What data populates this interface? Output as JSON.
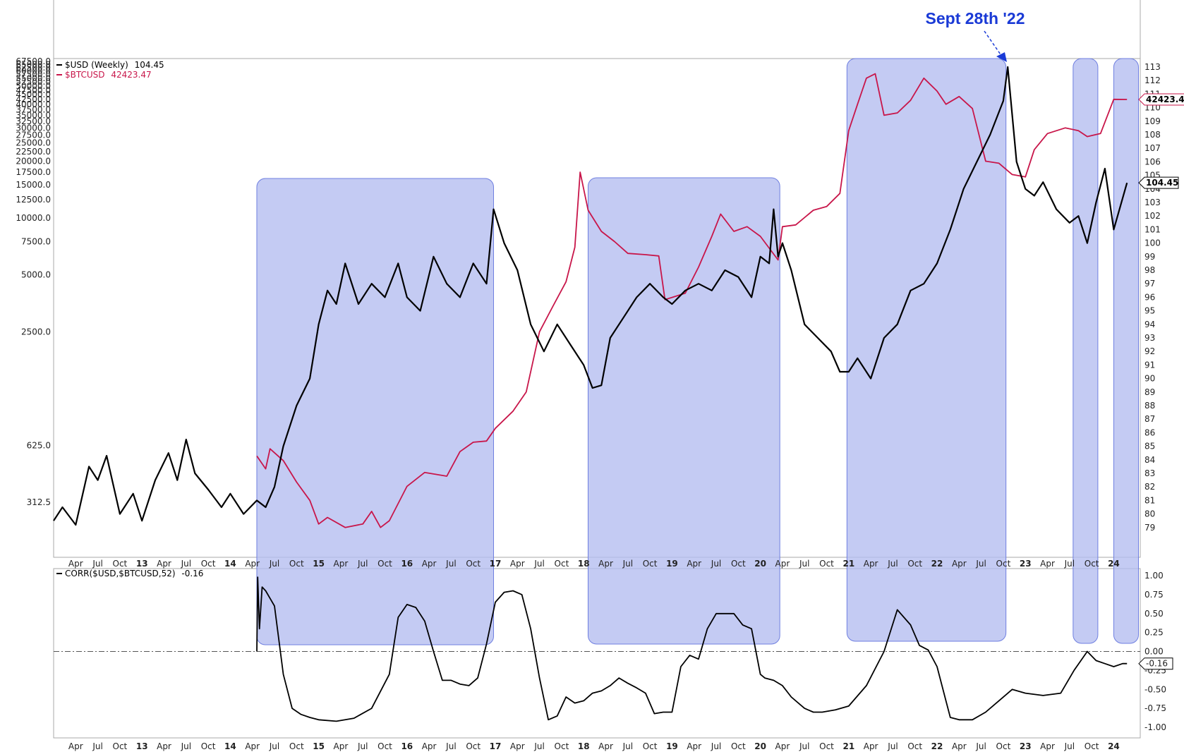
{
  "annotation": {
    "text": "Sept 28th '22",
    "color": "#1a3ad6"
  },
  "colors": {
    "usd": "#000000",
    "btc": "#c8164a",
    "highlight": "#b4bcf0",
    "highlight_border": "#6f7fe0",
    "axis": "#aaaaaa"
  },
  "chart_data": [
    {
      "type": "line",
      "title": "",
      "legend": [
        {
          "name": "$USD (Weekly)",
          "value": "104.45",
          "color": "#000000"
        },
        {
          "name": "$BTCUSD",
          "value": "42423.47",
          "color": "#c8164a"
        }
      ],
      "last_value_tags": {
        "usd": "104.45",
        "btc": "42423.47"
      },
      "x_tick_labels": [
        "Apr",
        "Jul",
        "Oct",
        "13",
        "Apr",
        "Jul",
        "Oct",
        "14",
        "Apr",
        "Jul",
        "Oct",
        "15",
        "Apr",
        "Jul",
        "Oct",
        "16",
        "Apr",
        "Jul",
        "Oct",
        "17",
        "Apr",
        "Jul",
        "Oct",
        "18",
        "Apr",
        "Jul",
        "Oct",
        "19",
        "Apr",
        "Jul",
        "Oct",
        "20",
        "Apr",
        "Jul",
        "Oct",
        "21",
        "Apr",
        "Jul",
        "Oct",
        "22",
        "Apr",
        "Jul",
        "Oct",
        "23",
        "Apr",
        "Jul",
        "Oct",
        "24"
      ],
      "x_range": [
        2012.0,
        2024.3
      ],
      "left_axis": {
        "scale": "log",
        "range": [
          200,
          67500
        ],
        "tick_labels": [
          "67500.0",
          "65000.0",
          "62500.0",
          "60000.0",
          "57500.0",
          "55000.0",
          "52500.0",
          "50000.0",
          "47500.0",
          "45000.0",
          "42500.0",
          "40000.0",
          "37500.0",
          "35000.0",
          "32500.0",
          "30000.0",
          "27500.0",
          "25000.0",
          "22500.0",
          "20000.0",
          "17500.0",
          "15000.0",
          "12500.0",
          "10000.0",
          "7500.0",
          "5000.0",
          "2500.0",
          "625.0",
          "312.5"
        ]
      },
      "right_axis": {
        "scale": "linear",
        "range": [
          78,
          113
        ],
        "tick_labels": [
          "113",
          "112",
          "111",
          "110",
          "109",
          "108",
          "107",
          "106",
          "105",
          "104",
          "103",
          "102",
          "101",
          "100",
          "99",
          "98",
          "97",
          "96",
          "95",
          "94",
          "93",
          "92",
          "91",
          "90",
          "89",
          "88",
          "87",
          "86",
          "85",
          "84",
          "83",
          "82",
          "81",
          "80",
          "79"
        ]
      },
      "series": [
        {
          "name": "$USD (Weekly)",
          "axis": "right",
          "x": [
            2012.0,
            2012.1,
            2012.25,
            2012.4,
            2012.5,
            2012.6,
            2012.75,
            2012.9,
            2013.0,
            2013.15,
            2013.3,
            2013.4,
            2013.5,
            2013.6,
            2013.75,
            2013.9,
            2014.0,
            2014.15,
            2014.3,
            2014.4,
            2014.5,
            2014.6,
            2014.75,
            2014.9,
            2015.0,
            2015.1,
            2015.2,
            2015.3,
            2015.45,
            2015.6,
            2015.75,
            2015.9,
            2016.0,
            2016.15,
            2016.3,
            2016.45,
            2016.6,
            2016.75,
            2016.9,
            2016.98,
            2017.1,
            2017.25,
            2017.4,
            2017.55,
            2017.7,
            2017.85,
            2018.0,
            2018.1,
            2018.2,
            2018.3,
            2018.45,
            2018.6,
            2018.75,
            2018.9,
            2019.0,
            2019.15,
            2019.3,
            2019.45,
            2019.6,
            2019.75,
            2019.9,
            2020.0,
            2020.1,
            2020.15,
            2020.2,
            2020.25,
            2020.35,
            2020.5,
            2020.65,
            2020.8,
            2020.9,
            2021.0,
            2021.1,
            2021.25,
            2021.4,
            2021.55,
            2021.7,
            2021.85,
            2022.0,
            2022.15,
            2022.3,
            2022.45,
            2022.6,
            2022.75,
            2022.8,
            2022.9,
            2023.0,
            2023.1,
            2023.2,
            2023.35,
            2023.5,
            2023.6,
            2023.7,
            2023.8,
            2023.9,
            2024.0,
            2024.15
          ],
          "values": [
            79.5,
            80.5,
            79.2,
            83.5,
            82.5,
            84.3,
            80,
            81.5,
            79.5,
            82.5,
            84.5,
            82.5,
            85.5,
            83,
            81.8,
            80.5,
            81.5,
            80,
            81,
            80.5,
            82,
            85,
            88,
            90,
            94,
            96.5,
            95.5,
            98.5,
            95.5,
            97,
            96,
            98.5,
            96,
            95,
            99,
            97,
            96,
            98.5,
            97,
            102.5,
            100,
            98,
            94,
            92,
            94,
            92.5,
            91,
            89.3,
            89.5,
            93,
            94.5,
            96,
            97,
            96,
            95.5,
            96.5,
            97,
            96.5,
            98,
            97.5,
            96,
            99,
            98.5,
            102.5,
            99,
            100,
            98,
            94,
            93,
            92,
            90.5,
            90.5,
            91.5,
            90,
            93,
            94,
            96.5,
            97,
            98.5,
            101,
            104,
            106,
            108,
            110.5,
            113,
            106,
            104,
            103.5,
            104.5,
            102.5,
            101.5,
            102,
            100,
            103,
            105.5,
            101,
            104.45
          ]
        },
        {
          "name": "$BTCUSD",
          "axis": "left",
          "x": [
            2014.3,
            2014.4,
            2014.45,
            2014.6,
            2014.75,
            2014.9,
            2015.0,
            2015.1,
            2015.3,
            2015.5,
            2015.6,
            2015.7,
            2015.8,
            2016.0,
            2016.2,
            2016.45,
            2016.6,
            2016.75,
            2016.9,
            2017.0,
            2017.2,
            2017.35,
            2017.5,
            2017.65,
            2017.8,
            2017.9,
            2017.96,
            2018.05,
            2018.2,
            2018.35,
            2018.5,
            2018.7,
            2018.85,
            2018.92,
            2019.0,
            2019.15,
            2019.3,
            2019.45,
            2019.55,
            2019.7,
            2019.85,
            2020.0,
            2020.2,
            2020.25,
            2020.4,
            2020.6,
            2020.75,
            2020.9,
            2021.0,
            2021.1,
            2021.2,
            2021.3,
            2021.4,
            2021.55,
            2021.7,
            2021.85,
            2022.0,
            2022.1,
            2022.25,
            2022.4,
            2022.55,
            2022.7,
            2022.85,
            2023.0,
            2023.1,
            2023.25,
            2023.45,
            2023.6,
            2023.7,
            2023.85,
            2024.0,
            2024.15
          ],
          "values": [
            550,
            470,
            600,
            520,
            400,
            320,
            240,
            260,
            230,
            240,
            280,
            230,
            250,
            380,
            450,
            430,
            580,
            650,
            660,
            770,
            950,
            1200,
            2500,
            3400,
            4600,
            7000,
            17500,
            11000,
            8500,
            7500,
            6500,
            6400,
            6300,
            3700,
            3800,
            4000,
            5500,
            8000,
            10500,
            8500,
            9000,
            8000,
            6000,
            9000,
            9200,
            11000,
            11500,
            13500,
            29000,
            40000,
            55000,
            58000,
            35000,
            36000,
            42000,
            55000,
            47000,
            40000,
            44000,
            38000,
            20000,
            19500,
            17000,
            16500,
            23000,
            28000,
            30000,
            29000,
            27000,
            28000,
            42500,
            42423
          ]
        }
      ]
    },
    {
      "type": "line",
      "title": "",
      "legend": [
        {
          "name": "CORR($USD,$BTCUSD,52)",
          "value": "-0.16",
          "color": "#000000"
        }
      ],
      "last_value_tag": "-0.16",
      "x_tick_labels": [
        "Apr",
        "Jul",
        "Oct",
        "13",
        "Apr",
        "Jul",
        "Oct",
        "14",
        "Apr",
        "Jul",
        "Oct",
        "15",
        "Apr",
        "Jul",
        "Oct",
        "16",
        "Apr",
        "Jul",
        "Oct",
        "17",
        "Apr",
        "Jul",
        "Oct",
        "18",
        "Apr",
        "Jul",
        "Oct",
        "19",
        "Apr",
        "Jul",
        "Oct",
        "20",
        "Apr",
        "Jul",
        "Oct",
        "21",
        "Apr",
        "Jul",
        "Oct",
        "22",
        "Apr",
        "Jul",
        "Oct",
        "23",
        "Apr",
        "Jul",
        "Oct",
        "24"
      ],
      "y_range": [
        -1.0,
        1.0
      ],
      "y_tick_labels": [
        "1.00",
        "0.75",
        "0.50",
        "0.25",
        "0.00",
        "-0.25",
        "-0.50",
        "-0.75",
        "-1.00"
      ],
      "reference_line": 0,
      "series": [
        {
          "name": "CORR($USD,$BTCUSD,52)",
          "x": [
            2014.3,
            2014.31,
            2014.33,
            2014.36,
            2014.4,
            2014.5,
            2014.6,
            2014.7,
            2014.8,
            2014.9,
            2015.0,
            2015.2,
            2015.4,
            2015.6,
            2015.8,
            2015.9,
            2016.0,
            2016.1,
            2016.2,
            2016.3,
            2016.4,
            2016.5,
            2016.6,
            2016.7,
            2016.8,
            2016.9,
            2017.0,
            2017.1,
            2017.2,
            2017.3,
            2017.4,
            2017.5,
            2017.6,
            2017.7,
            2017.8,
            2017.9,
            2018.0,
            2018.1,
            2018.2,
            2018.3,
            2018.4,
            2018.5,
            2018.6,
            2018.7,
            2018.8,
            2018.9,
            2019.0,
            2019.1,
            2019.2,
            2019.3,
            2019.4,
            2019.5,
            2019.6,
            2019.7,
            2019.8,
            2019.9,
            2020.0,
            2020.05,
            2020.15,
            2020.25,
            2020.35,
            2020.45,
            2020.5,
            2020.6,
            2020.7,
            2020.85,
            2021.0,
            2021.2,
            2021.4,
            2021.55,
            2021.7,
            2021.8,
            2021.9,
            2022.0,
            2022.1,
            2022.15,
            2022.25,
            2022.4,
            2022.55,
            2022.7,
            2022.85,
            2023.0,
            2023.2,
            2023.4,
            2023.55,
            2023.7,
            2023.8,
            2023.9,
            2024.0,
            2024.1,
            2024.15
          ],
          "values": [
            0.0,
            0.98,
            0.3,
            0.85,
            0.8,
            0.6,
            -0.3,
            -0.75,
            -0.83,
            -0.87,
            -0.9,
            -0.92,
            -0.88,
            -0.75,
            -0.3,
            0.45,
            0.62,
            0.58,
            0.4,
            0.0,
            -0.38,
            -0.38,
            -0.43,
            -0.45,
            -0.35,
            0.1,
            0.65,
            0.78,
            0.8,
            0.75,
            0.3,
            -0.35,
            -0.9,
            -0.85,
            -0.6,
            -0.68,
            -0.65,
            -0.55,
            -0.52,
            -0.45,
            -0.35,
            -0.42,
            -0.48,
            -0.55,
            -0.82,
            -0.8,
            -0.8,
            -0.2,
            -0.05,
            -0.1,
            0.3,
            0.5,
            0.5,
            0.5,
            0.35,
            0.3,
            -0.3,
            -0.35,
            -0.38,
            -0.45,
            -0.6,
            -0.7,
            -0.75,
            -0.8,
            -0.8,
            -0.77,
            -0.72,
            -0.45,
            0.0,
            0.55,
            0.35,
            0.08,
            0.02,
            -0.2,
            -0.65,
            -0.87,
            -0.9,
            -0.9,
            -0.8,
            -0.65,
            -0.5,
            -0.55,
            -0.58,
            -0.55,
            -0.25,
            0.0,
            -0.12,
            -0.16,
            -0.2,
            -0.16,
            -0.16
          ]
        }
      ]
    }
  ],
  "highlight_periods": [
    {
      "name": "period-1",
      "x_start": 2014.3,
      "x_end": 2016.98
    },
    {
      "name": "period-2",
      "x_start": 2018.05,
      "x_end": 2020.22
    },
    {
      "name": "period-3",
      "x_start": 2020.98,
      "x_end": 2022.78
    },
    {
      "name": "period-4",
      "x_start": 2023.54,
      "x_end": 2023.82
    },
    {
      "name": "period-5",
      "x_start": 2024.0,
      "x_end": 2024.28
    }
  ]
}
